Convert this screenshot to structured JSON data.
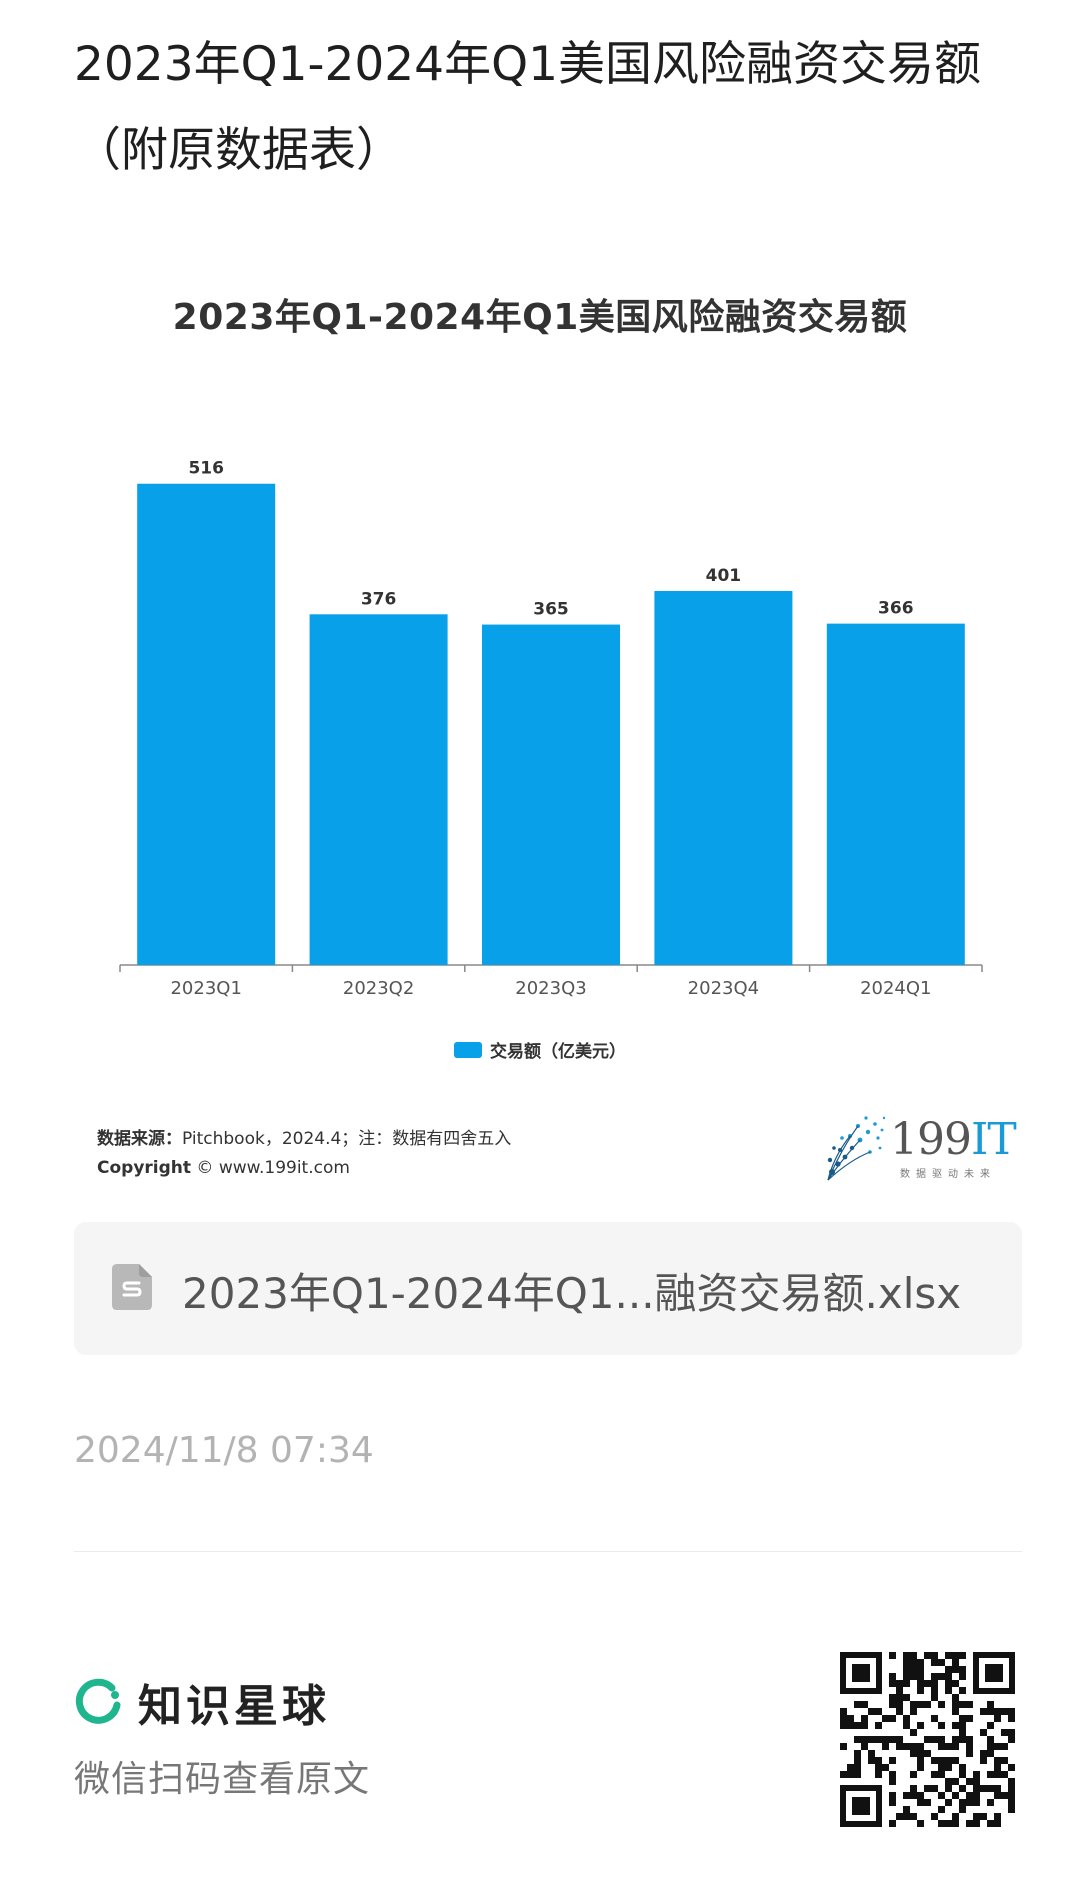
{
  "page": {
    "title": "2023年Q1-2024年Q1美国风险融资交易额（附原数据表）"
  },
  "chart_data": {
    "type": "bar",
    "title": "2023年Q1-2024年Q1美国风险融资交易额",
    "categories": [
      "2023Q1",
      "2023Q2",
      "2023Q3",
      "2023Q4",
      "2024Q1"
    ],
    "series": [
      {
        "name": "交易额（亿美元）",
        "values": [
          516,
          376,
          365,
          401,
          366
        ],
        "color": "#08a0e9"
      }
    ],
    "ylim": [
      0,
      520
    ],
    "grid": false,
    "data_labels": true,
    "legend_position": "bottom"
  },
  "source": {
    "label": "数据来源：",
    "text": "Pitchbook，2024.4；注：数据有四舍五入",
    "copyright_label": "Copyright",
    "copyright_text": "© www.199it.com"
  },
  "logo": {
    "number": "199",
    "suffix": "IT",
    "tagline": "数据驱动未来"
  },
  "file": {
    "name": "2023年Q1-2024年Q1...融资交易额.xlsx",
    "icon": "spreadsheet-file-icon"
  },
  "timestamp": "2024/11/8 07:34",
  "footer": {
    "brand": "知识星球",
    "brand_icon": "zsxq-logo-icon",
    "scan_hint": "微信扫码查看原文",
    "brand_color": "#1fb58f"
  }
}
